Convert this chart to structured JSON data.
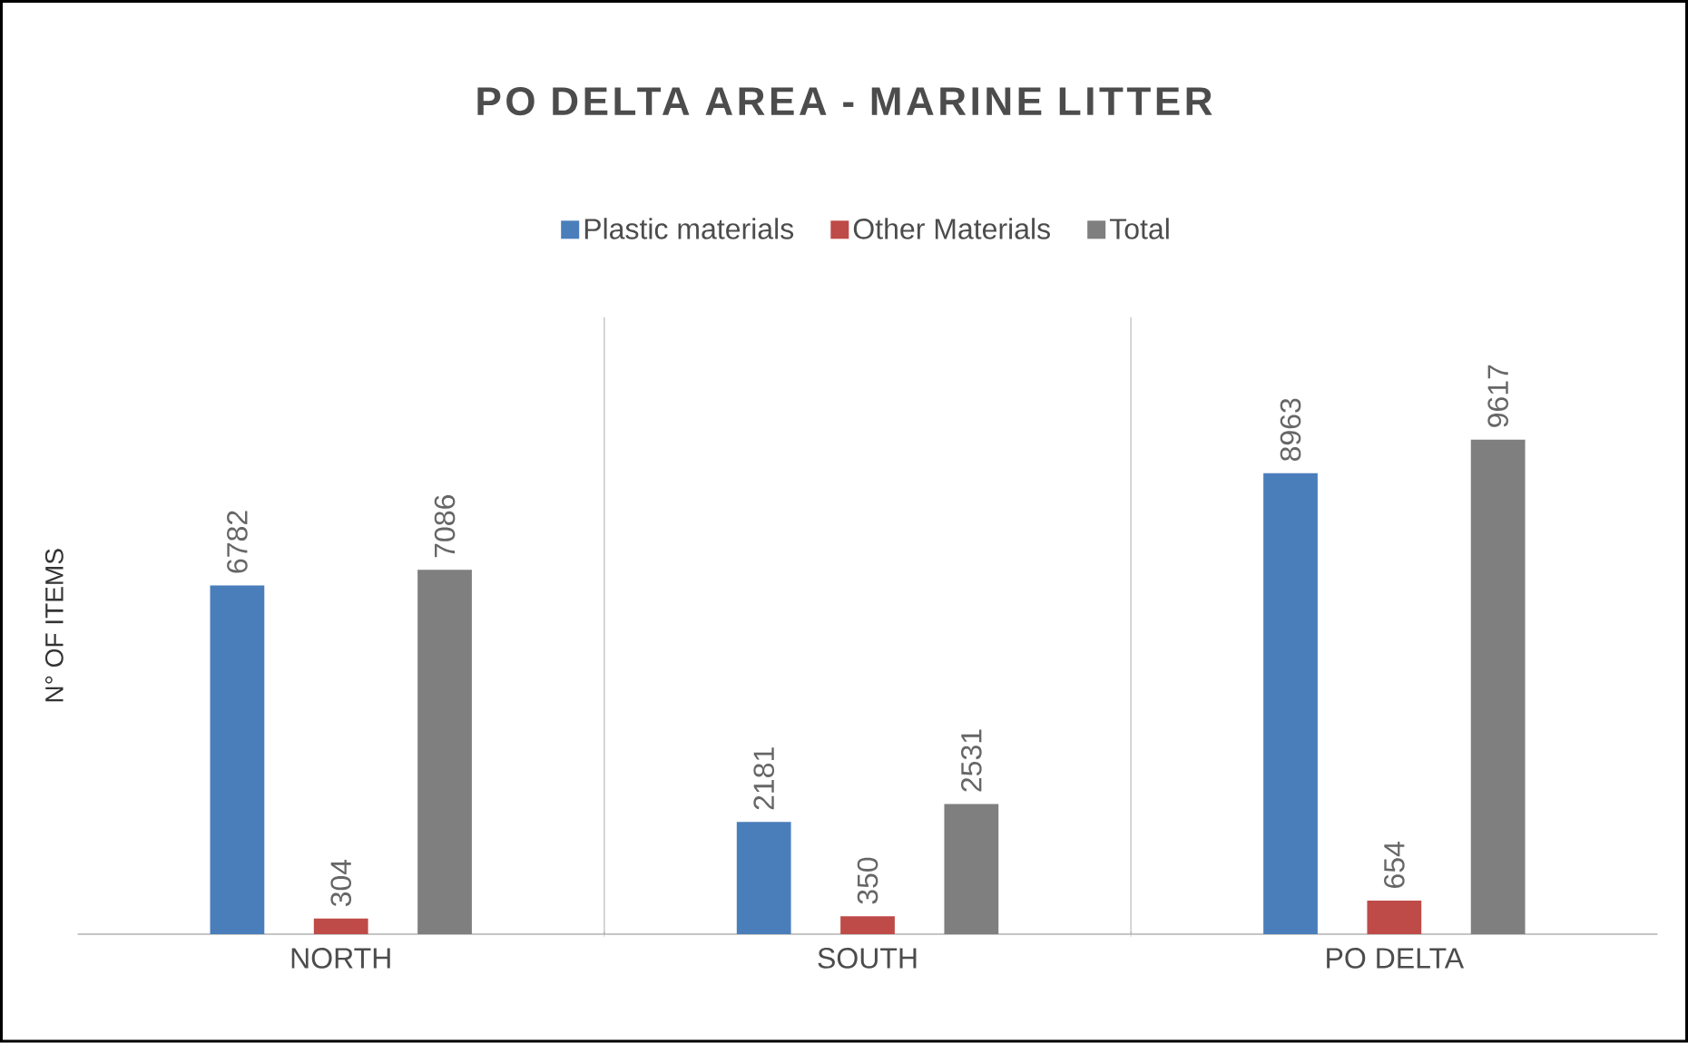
{
  "chart_data": {
    "type": "bar",
    "title": "PO DELTA AREA - MARINE LITTER",
    "ylabel": "N° OF ITEMS",
    "categories": [
      "NORTH",
      "SOUTH",
      "PO DELTA"
    ],
    "series": [
      {
        "name": "Plastic materials",
        "color": "#4a7ebb",
        "values": [
          6782,
          2181,
          8963
        ]
      },
      {
        "name": "Other Materials",
        "color": "#be4b48",
        "values": [
          304,
          350,
          654
        ]
      },
      {
        "name": "Total",
        "color": "#7f7f7f",
        "values": [
          7086,
          2531,
          9617
        ]
      }
    ],
    "ylim": [
      0,
      12000
    ],
    "data_labels": true,
    "grid": "x",
    "legend": "top",
    "tick_labels": "x"
  }
}
